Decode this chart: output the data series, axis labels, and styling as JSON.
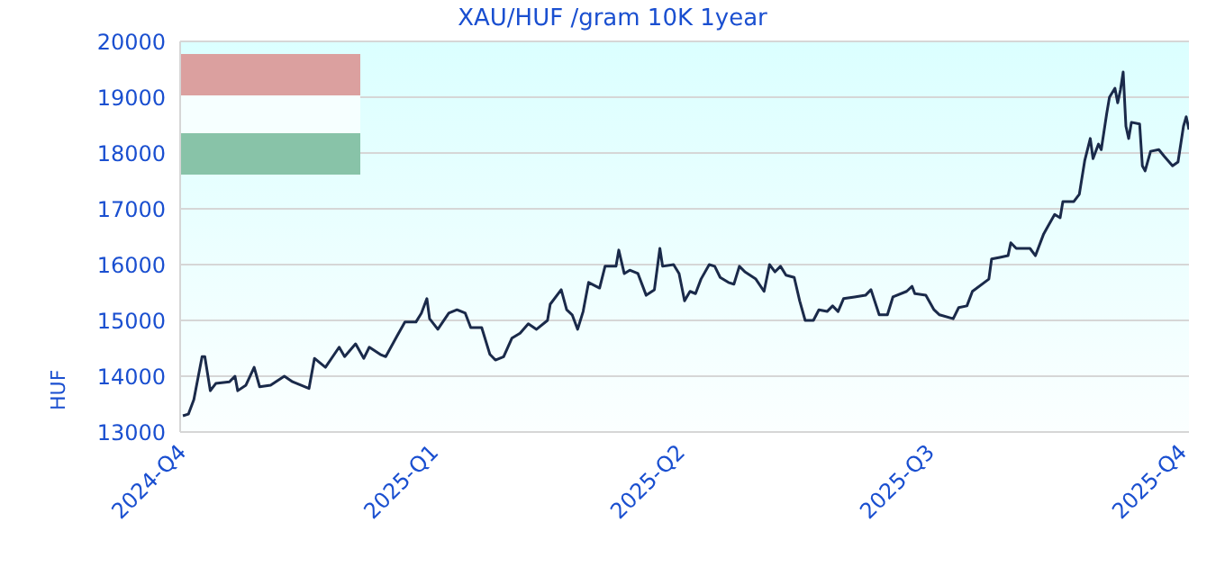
{
  "chart_data": {
    "type": "line",
    "title": "XAU/HUF /gram 10K 1year",
    "ylabel": "HUF",
    "x": [
      "2024-10-02",
      "2024-10-04",
      "2024-10-06",
      "2024-10-09",
      "2024-10-10",
      "2024-10-12",
      "2024-10-14",
      "2024-10-19",
      "2024-10-21",
      "2024-10-22",
      "2024-10-25",
      "2024-10-28",
      "2024-10-30",
      "2024-11-03",
      "2024-11-08",
      "2024-11-11",
      "2024-11-14",
      "2024-11-17",
      "2024-11-19",
      "2024-11-23",
      "2024-11-28",
      "2024-11-30",
      "2024-12-04",
      "2024-12-07",
      "2024-12-09",
      "2024-12-13",
      "2024-12-15",
      "2024-12-19",
      "2024-12-22",
      "2024-12-26",
      "2024-12-28",
      "2024-12-30",
      "2024-12-31",
      "2025-01-03",
      "2025-01-07",
      "2025-01-10",
      "2025-01-13",
      "2025-01-15",
      "2025-01-19",
      "2025-01-22",
      "2025-01-24",
      "2025-01-27",
      "2025-01-30",
      "2025-02-02",
      "2025-02-05",
      "2025-02-08",
      "2025-02-12",
      "2025-02-13",
      "2025-02-17",
      "2025-02-19",
      "2025-02-21",
      "2025-02-23",
      "2025-02-25",
      "2025-02-27",
      "2025-03-03",
      "2025-03-05",
      "2025-03-09",
      "2025-03-10",
      "2025-03-12",
      "2025-03-14",
      "2025-03-17",
      "2025-03-20",
      "2025-03-23",
      "2025-03-25",
      "2025-03-26",
      "2025-03-30",
      "2025-04-01",
      "2025-04-03",
      "2025-04-05",
      "2025-04-07",
      "2025-04-09",
      "2025-04-12",
      "2025-04-14",
      "2025-04-16",
      "2025-04-19",
      "2025-04-21",
      "2025-04-23",
      "2025-04-25",
      "2025-04-29",
      "2025-05-02",
      "2025-05-04",
      "2025-05-06",
      "2025-05-08",
      "2025-05-10",
      "2025-05-13",
      "2025-05-15",
      "2025-05-17",
      "2025-05-20",
      "2025-05-22",
      "2025-05-25",
      "2025-05-27",
      "2025-05-29",
      "2025-05-31",
      "2025-06-04",
      "2025-06-08",
      "2025-06-10",
      "2025-06-13",
      "2025-06-16",
      "2025-06-18",
      "2025-06-23",
      "2025-06-25",
      "2025-06-26",
      "2025-06-30",
      "2025-07-03",
      "2025-07-05",
      "2025-07-10",
      "2025-07-12",
      "2025-07-15",
      "2025-07-17",
      "2025-07-23",
      "2025-07-24",
      "2025-07-27",
      "2025-07-30",
      "2025-07-31",
      "2025-08-02",
      "2025-08-07",
      "2025-08-09",
      "2025-08-12",
      "2025-08-16",
      "2025-08-18",
      "2025-08-19",
      "2025-08-23",
      "2025-08-25",
      "2025-08-27",
      "2025-08-29",
      "2025-08-30",
      "2025-09-01",
      "2025-09-02",
      "2025-09-04",
      "2025-09-05",
      "2025-09-07",
      "2025-09-08",
      "2025-09-09",
      "2025-09-10",
      "2025-09-11",
      "2025-09-12",
      "2025-09-13",
      "2025-09-16",
      "2025-09-17",
      "2025-09-18",
      "2025-09-20",
      "2025-09-23",
      "2025-09-25",
      "2025-09-28",
      "2025-09-30",
      "2025-10-02",
      "2025-10-03",
      "2025-10-04"
    ],
    "series": [
      {
        "color": "#1a2a4a",
        "values": [
          13290,
          13320,
          13580,
          14350,
          14350,
          13740,
          13870,
          13900,
          14000,
          13740,
          13840,
          14160,
          13810,
          13840,
          14000,
          13900,
          13840,
          13780,
          14320,
          14160,
          14520,
          14350,
          14580,
          14320,
          14520,
          14390,
          14350,
          14710,
          14970,
          14970,
          15130,
          15390,
          15030,
          14840,
          15130,
          15190,
          15130,
          14870,
          14870,
          14390,
          14290,
          14350,
          14680,
          14770,
          14940,
          14840,
          15000,
          15290,
          15550,
          15190,
          15100,
          14840,
          15160,
          15680,
          15580,
          15970,
          15970,
          16260,
          15840,
          15900,
          15840,
          15450,
          15550,
          16290,
          15970,
          16000,
          15840,
          15350,
          15520,
          15480,
          15740,
          16000,
          15970,
          15770,
          15680,
          15650,
          15970,
          15870,
          15740,
          15520,
          16000,
          15870,
          15970,
          15810,
          15770,
          15350,
          15000,
          15000,
          15190,
          15160,
          15260,
          15160,
          15390,
          15420,
          15450,
          15550,
          15100,
          15100,
          15420,
          15520,
          15610,
          15480,
          15450,
          15190,
          15100,
          15030,
          15230,
          15260,
          15520,
          15740,
          16100,
          16130,
          16160,
          16390,
          16290,
          16290,
          16160,
          16550,
          16900,
          16840,
          17130,
          17130,
          17260,
          17870,
          18260,
          17900,
          18160,
          18060,
          18710,
          19000,
          19160,
          18900,
          19130,
          19450,
          18480,
          18260,
          18550,
          18520,
          17770,
          17680,
          18030,
          18060,
          17940,
          17770,
          17840,
          18480,
          18650,
          18420
        ]
      }
    ],
    "xlim": [
      "2024-10-01",
      "2025-10-04"
    ],
    "xticks": [
      {
        "value": "2024-10-01",
        "label": "2024-Q4"
      },
      {
        "value": "2025-01-01",
        "label": "2025-Q1"
      },
      {
        "value": "2025-04-01",
        "label": "2025-Q2"
      },
      {
        "value": "2025-07-01",
        "label": "2025-Q3"
      },
      {
        "value": "2025-10-01",
        "label": "2025-Q4"
      }
    ],
    "ylim": [
      13000,
      20000
    ],
    "yticks": [
      13000,
      14000,
      15000,
      16000,
      17000,
      18000,
      19000,
      20000
    ],
    "grid": "y",
    "legend": false,
    "marker": "none",
    "line_style": "solid"
  }
}
